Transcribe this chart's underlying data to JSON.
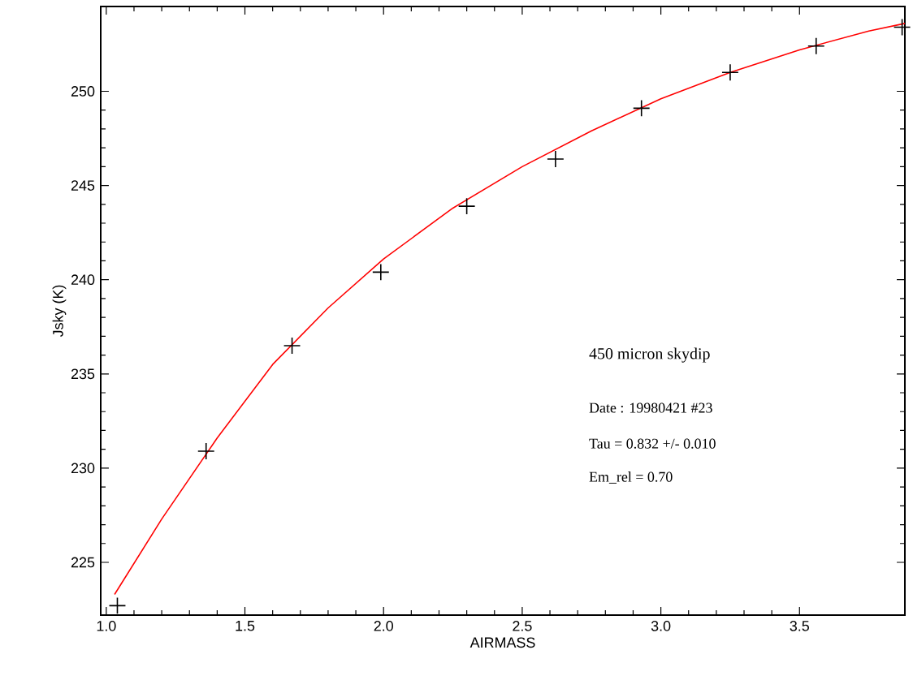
{
  "chart_data": {
    "type": "scatter",
    "xlabel": "AIRMASS",
    "ylabel": "Jsky  (K)",
    "annotations": [
      "450 micron skydip",
      "Date : 19980421 #23",
      "Tau = 0.832 +/- 0.010",
      "Em_rel = 0.70"
    ],
    "series": [
      {
        "color": "#000000",
        "marker": "cross",
        "x": [
          1.04,
          1.36,
          1.67,
          1.99,
          2.3,
          2.62,
          2.93,
          3.25,
          3.56,
          3.87
        ],
        "values": [
          222.7,
          230.9,
          236.5,
          240.4,
          243.9,
          246.4,
          249.1,
          251.0,
          252.4,
          253.4
        ]
      },
      {
        "type": "line",
        "color": "#ff0000",
        "marker": "none",
        "line_style": "solid",
        "x": [
          1.03,
          1.2,
          1.4,
          1.6,
          1.8,
          2.0,
          2.25,
          2.5,
          2.75,
          3.0,
          3.25,
          3.5,
          3.75,
          3.88
        ],
        "values": [
          223.3,
          227.3,
          231.6,
          235.5,
          238.5,
          241.1,
          243.8,
          246.0,
          247.9,
          249.6,
          251.0,
          252.2,
          253.2,
          253.6
        ]
      }
    ],
    "xlim": [
      0.98,
      3.88
    ],
    "ylim": [
      222.2,
      254.5
    ],
    "xticks": [
      {
        "value": 1,
        "label": "1.0"
      },
      {
        "value": 1.5,
        "label": "1.5"
      },
      {
        "value": 2,
        "label": "2.0"
      },
      {
        "value": 2.5,
        "label": "2.5"
      },
      {
        "value": 3,
        "label": "3.0"
      },
      {
        "value": 3.5,
        "label": "3.5"
      }
    ],
    "yticks": [
      225,
      230,
      235,
      240,
      245,
      250
    ]
  }
}
